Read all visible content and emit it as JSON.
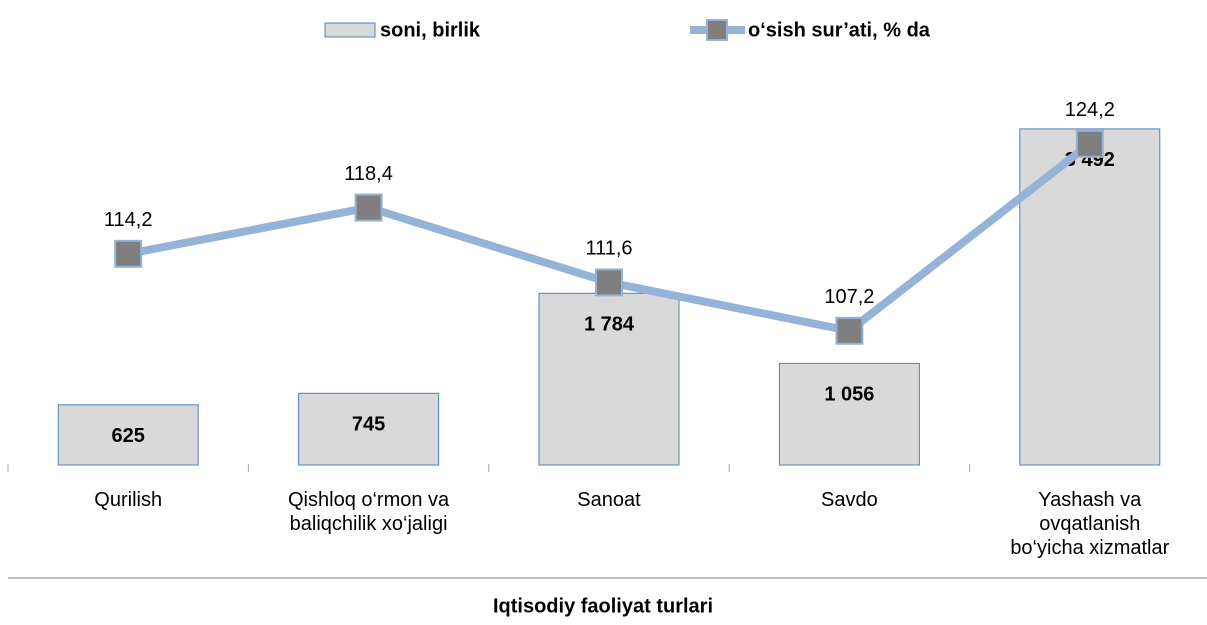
{
  "chart_data": {
    "type": "bar_line",
    "x_label": "Iqtisodiy faoliyat turlari",
    "categories": [
      "Qurilish",
      "Qishloq o‘rmon va\nbaliqchilik xo‘jaligi",
      "Sanoat",
      "Savdo",
      "Yashash va\novqatlanish\nbo‘yicha xizmatlar"
    ],
    "series": [
      {
        "name": "soni, birlik",
        "type": "bar",
        "color": "#d9d9d9",
        "values": [
          625,
          745,
          1784,
          1056,
          3492
        ],
        "value_labels": [
          "625",
          "745",
          "1 784",
          "1 056",
          "3 492"
        ]
      },
      {
        "name": "o‘sish sur’ati, % da",
        "type": "line",
        "axis": "y2",
        "color": "#95b3d7",
        "marker_color": "#7f7f7f",
        "values": [
          114.2,
          118.4,
          111.6,
          107.2,
          124.2
        ],
        "value_labels": [
          "114,2",
          "118,4",
          "111,6",
          "107,2",
          "124,2"
        ]
      }
    ],
    "ylim": [
      0,
      4000
    ],
    "y2lim": [
      95,
      130
    ],
    "legend": "top"
  }
}
